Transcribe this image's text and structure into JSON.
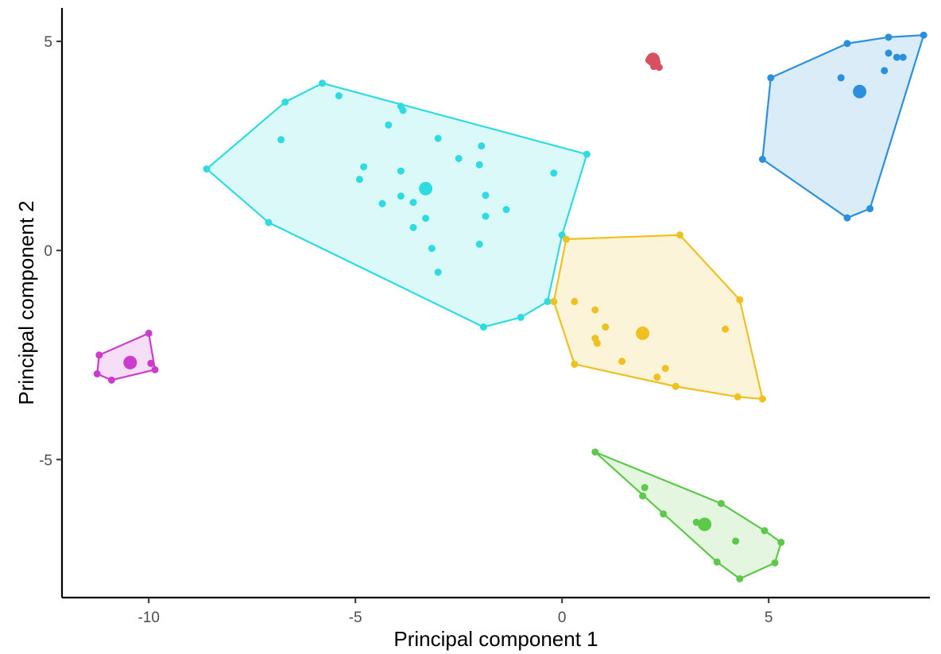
{
  "chart_data": {
    "type": "scatter",
    "title": "",
    "xlabel": "Principal component  1",
    "ylabel": "Principal component 2",
    "xlim": [
      -12.1,
      8.9
    ],
    "ylim": [
      -8.3,
      5.8
    ],
    "xticks": [
      -10,
      -5,
      0,
      5
    ],
    "yticks": [
      -5,
      0,
      5
    ],
    "xtick_labels": [
      "-10",
      "-5",
      "0",
      "5"
    ],
    "ytick_labels": [
      "-5",
      "0",
      "5"
    ],
    "grid": false,
    "legend": "none",
    "series": [
      {
        "color": "#d94f62",
        "centroid": [
          2.2,
          4.57
        ],
        "points": [
          [
            2.15,
            4.6
          ],
          [
            2.25,
            4.6
          ],
          [
            2.2,
            4.55
          ],
          [
            2.1,
            4.55
          ],
          [
            2.3,
            4.5
          ],
          [
            2.22,
            4.4
          ],
          [
            2.35,
            4.38
          ],
          [
            2.18,
            4.62
          ]
        ],
        "hull": []
      },
      {
        "color": "#2a8fde",
        "centroid": [
          7.2,
          3.8
        ],
        "points": [
          [
            8.75,
            5.15
          ],
          [
            7.9,
            5.1
          ],
          [
            6.9,
            4.95
          ],
          [
            7.9,
            4.72
          ],
          [
            8.1,
            4.62
          ],
          [
            8.25,
            4.62
          ],
          [
            5.05,
            4.13
          ],
          [
            6.75,
            4.13
          ],
          [
            7.8,
            4.3
          ],
          [
            4.85,
            2.18
          ],
          [
            6.9,
            0.78
          ],
          [
            7.45,
            1.0
          ]
        ],
        "hull": [
          [
            8.75,
            5.15
          ],
          [
            7.45,
            1.0
          ],
          [
            6.9,
            0.78
          ],
          [
            4.85,
            2.18
          ],
          [
            5.05,
            4.13
          ],
          [
            6.9,
            4.95
          ],
          [
            7.9,
            5.1
          ]
        ]
      },
      {
        "color": "#2edbe0",
        "centroid": [
          -3.3,
          1.48
        ],
        "points": [
          [
            -5.8,
            4.0
          ],
          [
            -6.7,
            3.55
          ],
          [
            -5.4,
            3.7
          ],
          [
            -3.9,
            3.45
          ],
          [
            -3.85,
            3.35
          ],
          [
            -4.2,
            3.0
          ],
          [
            -6.8,
            2.65
          ],
          [
            -3.0,
            2.68
          ],
          [
            -1.95,
            2.5
          ],
          [
            -2.5,
            2.2
          ],
          [
            -2.0,
            2.05
          ],
          [
            -4.8,
            2.0
          ],
          [
            -3.9,
            1.9
          ],
          [
            -4.9,
            1.7
          ],
          [
            -8.6,
            1.95
          ],
          [
            -0.2,
            1.85
          ],
          [
            0.6,
            2.3
          ],
          [
            -1.85,
            1.32
          ],
          [
            -3.9,
            1.3
          ],
          [
            -3.6,
            1.15
          ],
          [
            -4.35,
            1.12
          ],
          [
            -1.35,
            0.98
          ],
          [
            -3.3,
            0.77
          ],
          [
            -1.85,
            0.82
          ],
          [
            -7.1,
            0.67
          ],
          [
            -3.6,
            0.55
          ],
          [
            -2.0,
            0.15
          ],
          [
            -3.15,
            0.05
          ],
          [
            0.0,
            0.37
          ],
          [
            -3.0,
            -0.52
          ],
          [
            -0.35,
            -1.22
          ],
          [
            -1.0,
            -1.6
          ],
          [
            -1.9,
            -1.83
          ]
        ],
        "hull": [
          [
            -5.8,
            4.0
          ],
          [
            0.6,
            2.3
          ],
          [
            0.0,
            0.37
          ],
          [
            -0.35,
            -1.22
          ],
          [
            -1.0,
            -1.6
          ],
          [
            -1.9,
            -1.83
          ],
          [
            -7.1,
            0.67
          ],
          [
            -8.6,
            1.95
          ],
          [
            -6.7,
            3.55
          ]
        ]
      },
      {
        "color": "#f0c020",
        "centroid": [
          1.95,
          -1.98
        ],
        "points": [
          [
            2.85,
            0.37
          ],
          [
            0.1,
            0.27
          ],
          [
            -0.2,
            -1.22
          ],
          [
            0.3,
            -1.22
          ],
          [
            0.8,
            -1.42
          ],
          [
            4.3,
            -1.18
          ],
          [
            1.05,
            -1.83
          ],
          [
            0.8,
            -2.1
          ],
          [
            0.85,
            -2.22
          ],
          [
            3.95,
            -1.88
          ],
          [
            1.45,
            -2.65
          ],
          [
            0.3,
            -2.72
          ],
          [
            2.5,
            -2.82
          ],
          [
            2.3,
            -3.03
          ],
          [
            2.75,
            -3.25
          ],
          [
            4.25,
            -3.5
          ],
          [
            4.85,
            -3.55
          ]
        ],
        "hull": [
          [
            2.85,
            0.37
          ],
          [
            4.3,
            -1.18
          ],
          [
            4.85,
            -3.55
          ],
          [
            4.25,
            -3.5
          ],
          [
            2.75,
            -3.25
          ],
          [
            0.3,
            -2.72
          ],
          [
            -0.2,
            -1.22
          ],
          [
            0.1,
            0.27
          ]
        ]
      },
      {
        "color": "#5cc94a",
        "centroid": [
          3.45,
          -6.55
        ],
        "points": [
          [
            0.8,
            -4.82
          ],
          [
            2.0,
            -5.67
          ],
          [
            1.95,
            -5.87
          ],
          [
            3.85,
            -6.05
          ],
          [
            2.45,
            -6.3
          ],
          [
            3.25,
            -6.5
          ],
          [
            4.9,
            -6.7
          ],
          [
            4.2,
            -6.95
          ],
          [
            5.3,
            -6.98
          ],
          [
            3.75,
            -7.45
          ],
          [
            5.15,
            -7.47
          ],
          [
            4.3,
            -7.85
          ]
        ],
        "hull": [
          [
            0.8,
            -4.82
          ],
          [
            3.85,
            -6.05
          ],
          [
            4.9,
            -6.7
          ],
          [
            5.3,
            -6.98
          ],
          [
            5.15,
            -7.47
          ],
          [
            4.3,
            -7.85
          ],
          [
            3.75,
            -7.45
          ]
        ]
      },
      {
        "color": "#cc3ccc",
        "centroid": [
          -10.45,
          -2.68
        ],
        "points": [
          [
            -10.0,
            -1.98
          ],
          [
            -11.2,
            -2.5
          ],
          [
            -9.95,
            -2.7
          ],
          [
            -9.85,
            -2.85
          ],
          [
            -11.25,
            -2.95
          ],
          [
            -10.9,
            -3.1
          ]
        ],
        "hull": [
          [
            -10.0,
            -1.98
          ],
          [
            -9.85,
            -2.85
          ],
          [
            -10.9,
            -3.1
          ],
          [
            -11.25,
            -2.95
          ],
          [
            -11.2,
            -2.5
          ]
        ]
      }
    ]
  }
}
